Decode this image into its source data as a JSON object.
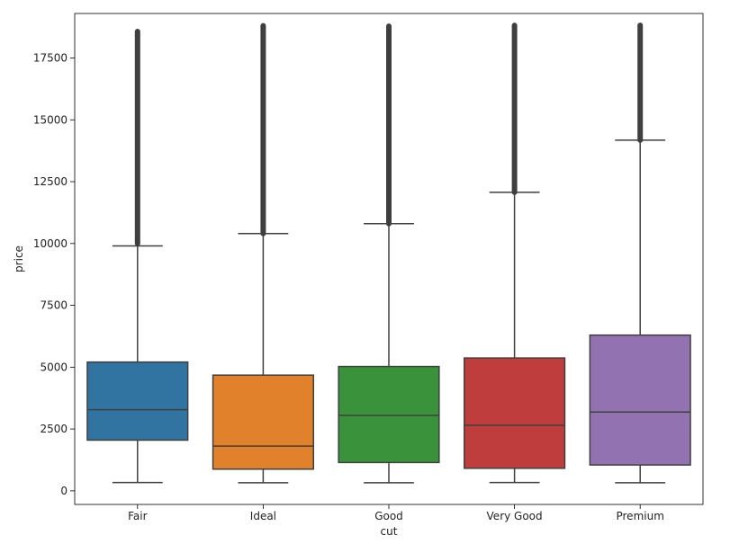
{
  "chart_data": {
    "type": "box",
    "xlabel": "cut",
    "ylabel": "price",
    "ylim": [
      -550,
      19300
    ],
    "yticks": [
      0,
      2500,
      5000,
      7500,
      10000,
      12500,
      15000,
      17500
    ],
    "ytick_labels": [
      "0",
      "2500",
      "5000",
      "7500",
      "10000",
      "12500",
      "15000",
      "17500"
    ],
    "categories": [
      "Fair",
      "Ideal",
      "Good",
      "Very Good",
      "Premium"
    ],
    "colors": [
      "#3274a1",
      "#e1812c",
      "#3a923a",
      "#c03d3e",
      "#9372b2"
    ],
    "edge_color": "#3f3f3f",
    "boxes": [
      {
        "min": 337,
        "q1": 2050,
        "median": 3282,
        "q3": 5206,
        "whisker_high": 9900,
        "outlier_low": 10000,
        "outlier_high": 18574
      },
      {
        "min": 326,
        "q1": 878,
        "median": 1810,
        "q3": 4678,
        "whisker_high": 10400,
        "outlier_low": 10400,
        "outlier_high": 18806
      },
      {
        "min": 327,
        "q1": 1145,
        "median": 3050,
        "q3": 5028,
        "whisker_high": 10800,
        "outlier_low": 10800,
        "outlier_high": 18788
      },
      {
        "min": 336,
        "q1": 912,
        "median": 2648,
        "q3": 5372,
        "whisker_high": 12070,
        "outlier_low": 12070,
        "outlier_high": 18818
      },
      {
        "min": 326,
        "q1": 1046,
        "median": 3185,
        "q3": 6296,
        "whisker_high": 14180,
        "outlier_low": 14180,
        "outlier_high": 18823
      }
    ]
  }
}
